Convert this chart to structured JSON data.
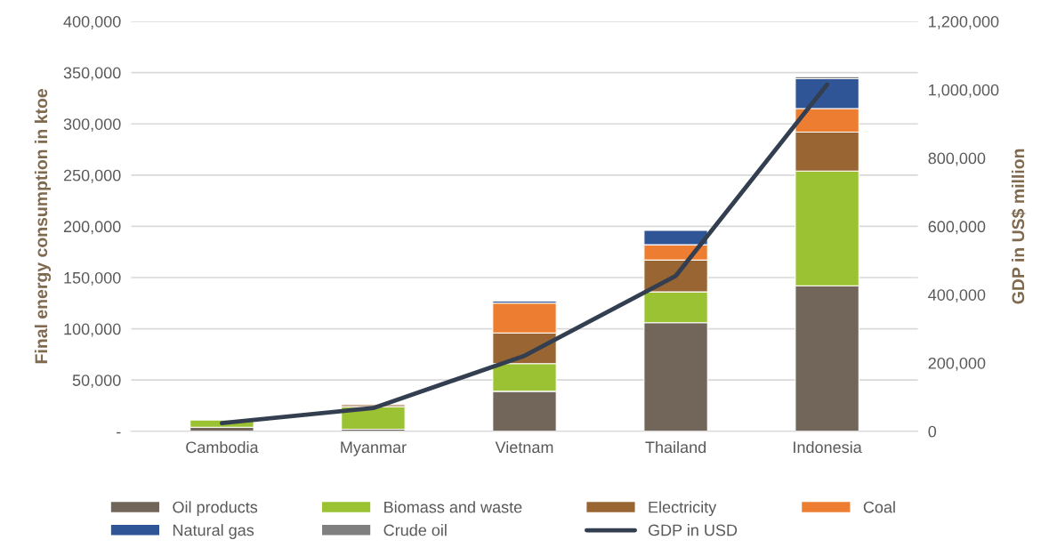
{
  "chart_data": {
    "type": "bar",
    "stacked": true,
    "ylabel": "Final energy consumption in ktoe",
    "y2label": "GDP in US$ million",
    "categories": [
      "Cambodia",
      "Myanmar",
      "Vietnam",
      "Thailand",
      "Indonesia"
    ],
    "series": [
      {
        "name": "Oil products",
        "color": "#72665a",
        "values": [
          4000,
          2000,
          39000,
          106000,
          142000
        ]
      },
      {
        "name": "Biomass and waste",
        "color": "#9bc232",
        "values": [
          7000,
          22000,
          27000,
          30000,
          112000
        ]
      },
      {
        "name": "Electricity",
        "color": "#996633",
        "values": [
          null,
          2000,
          30000,
          31000,
          38000
        ]
      },
      {
        "name": "Coal",
        "color": "#ed7d31",
        "values": [
          null,
          null,
          29000,
          15000,
          23000
        ]
      },
      {
        "name": "Natural gas",
        "color": "#2f5597",
        "values": [
          null,
          null,
          2000,
          14000,
          29000
        ]
      },
      {
        "name": "Crude oil",
        "color": "#7f7f7f",
        "values": [
          null,
          null,
          null,
          null,
          2000
        ]
      },
      {
        "name": "GDP in USD",
        "type": "line",
        "axis": "y2",
        "color": "#333f50",
        "values": [
          24000,
          68000,
          221000,
          455000,
          1015000
        ]
      }
    ],
    "ylim": [
      0,
      400000
    ],
    "yticks": [
      {
        "value": 0,
        "label": "-"
      },
      {
        "value": 50000,
        "label": "50,000"
      },
      {
        "value": 100000,
        "label": "100,000"
      },
      {
        "value": 150000,
        "label": "150,000"
      },
      {
        "value": 200000,
        "label": "200,000"
      },
      {
        "value": 250000,
        "label": "250,000"
      },
      {
        "value": 300000,
        "label": "300,000"
      },
      {
        "value": 350000,
        "label": "350,000"
      },
      {
        "value": 400000,
        "label": "400,000"
      }
    ],
    "y2lim": [
      0,
      1200000
    ],
    "y2ticks": [
      0,
      {
        "value": 200000,
        "label": "200,000"
      },
      {
        "value": 400000,
        "label": "400,000"
      },
      {
        "value": 600000,
        "label": "600,000"
      },
      {
        "value": 800000,
        "label": "800,000"
      },
      {
        "value": 1000000,
        "label": "1,000,000"
      },
      {
        "value": 1200000,
        "label": "1,200,000"
      }
    ],
    "grid": "y",
    "legend": "bottom",
    "marker": "none",
    "line_style": "solid"
  }
}
